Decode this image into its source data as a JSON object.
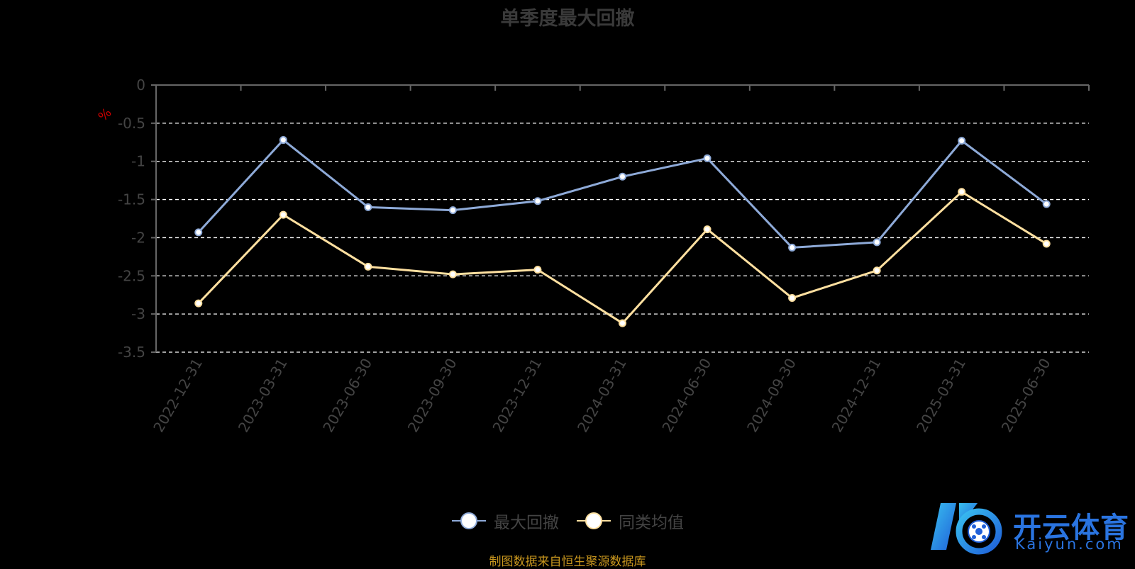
{
  "title": "单季度最大回撤",
  "source_note": "制图数据来自恒生聚源数据库",
  "watermark": {
    "cn": "开云体育",
    "en": "Kaiyun.com"
  },
  "colors": {
    "series1": "#8eaad8",
    "series2": "#ffe0a0",
    "grid": "#ffffff",
    "axis": "#666666",
    "tick_label": "#444444",
    "unit": "#cc0000",
    "logo": "#2a74e0"
  },
  "chart_data": {
    "type": "line",
    "title": "单季度最大回撤",
    "ylabel": "%",
    "ylim": [
      -3.5,
      0
    ],
    "yticks": [
      0,
      -0.5,
      -1,
      -1.5,
      -2,
      -2.5,
      -3,
      -3.5
    ],
    "grid": "dashed horizontal",
    "legend_position": "bottom-center",
    "categories": [
      "2022-12-31",
      "2023-03-31",
      "2023-06-30",
      "2023-09-30",
      "2023-12-31",
      "2024-03-31",
      "2024-06-30",
      "2024-09-30",
      "2024-12-31",
      "2025-03-31",
      "2025-06-30"
    ],
    "series": [
      {
        "name": "最大回撤",
        "values": [
          -1.93,
          -0.72,
          -1.6,
          -1.64,
          -1.52,
          -1.2,
          -0.96,
          -2.13,
          -2.06,
          -0.73,
          -1.56
        ]
      },
      {
        "name": "同类均值",
        "values": [
          -2.86,
          -1.7,
          -2.38,
          -2.48,
          -2.42,
          -3.12,
          -1.89,
          -2.79,
          -2.43,
          -1.4,
          -2.08
        ]
      }
    ]
  }
}
